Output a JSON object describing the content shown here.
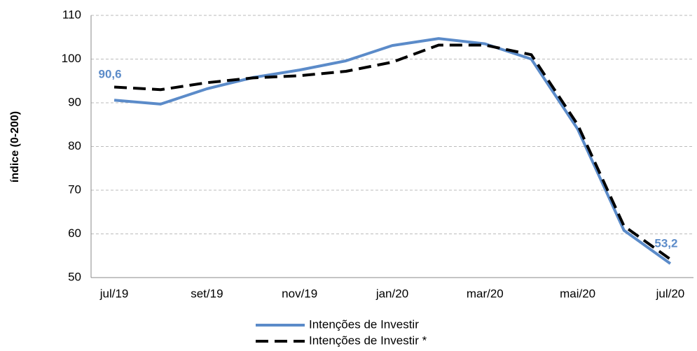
{
  "chart_data": {
    "type": "line",
    "y_label": "índice (0-200)",
    "categories": [
      "jul/19",
      null,
      "set/19",
      null,
      "nov/19",
      null,
      "jan/20",
      null,
      "mar/20",
      null,
      "mai/20",
      null,
      "jul/20"
    ],
    "series": [
      {
        "name": "Intenções de Investir",
        "color": "#5b8bc9",
        "line_style": "solid",
        "values": [
          90.6,
          89.7,
          93.2,
          95.8,
          97.5,
          99.6,
          103.1,
          104.7,
          103.5,
          100.0,
          84.0,
          60.8,
          53.2
        ],
        "value_labels": [
          "90,6",
          null,
          null,
          null,
          null,
          null,
          null,
          null,
          null,
          null,
          null,
          null,
          "53,2"
        ]
      },
      {
        "name": "Intenções de Investir *",
        "color": "#000000",
        "line_style": "dashed",
        "values": [
          93.6,
          93.0,
          94.6,
          95.7,
          96.2,
          97.2,
          99.3,
          103.2,
          103.2,
          101.0,
          85.0,
          61.8,
          54.2
        ]
      }
    ],
    "ylim": [
      50,
      110
    ],
    "yticks": [
      50,
      60,
      70,
      80,
      90,
      100,
      110
    ],
    "grid": true,
    "legend": "bottom"
  }
}
